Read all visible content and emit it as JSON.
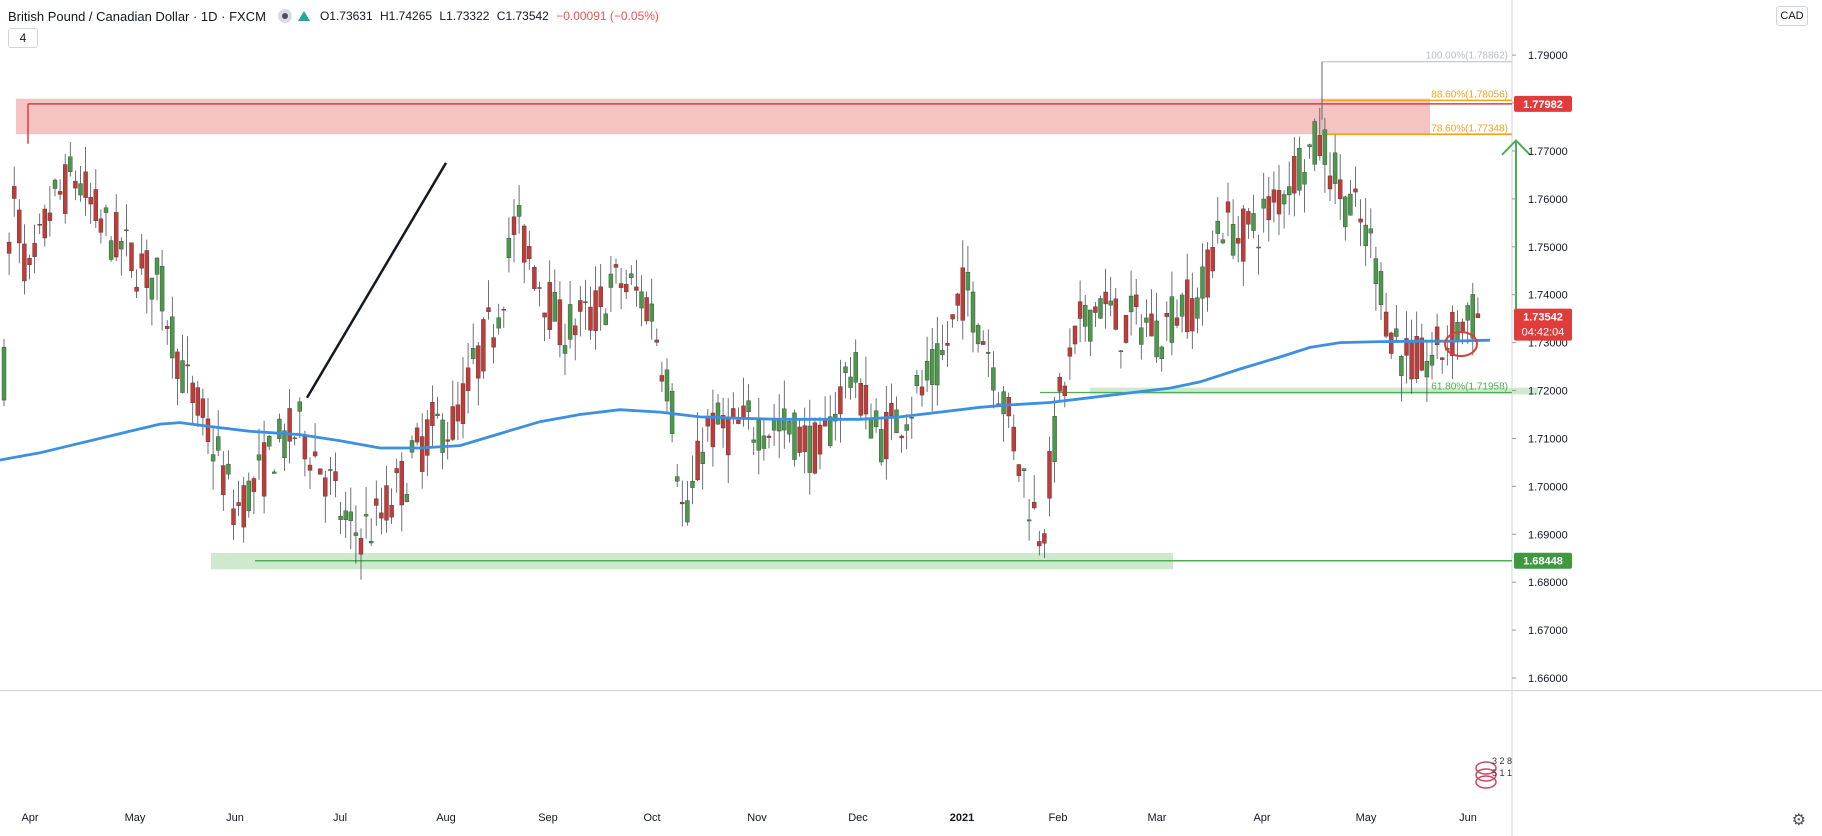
{
  "header": {
    "symbol": "British Pound / Canadian Dollar · 1D · FXCM",
    "open_label": "O1.73631",
    "high_label": "H1.74265",
    "low_label": "L1.73322",
    "close_label": "C1.73542",
    "change_label": "−0.00091 (−0.05%)",
    "indicator_count": "4",
    "currency": "CAD"
  },
  "chart_data": {
    "type": "candlestick",
    "title": "British Pound / Canadian Dollar · 1D · FXCM",
    "x_ticks": [
      "Apr",
      "May",
      "Jun",
      "Jul",
      "Aug",
      "Sep",
      "Oct",
      "Nov",
      "Dec",
      "2021",
      "Feb",
      "Mar",
      "Apr",
      "May",
      "Jun"
    ],
    "y_ticks": [
      "1.79000",
      "1.78000",
      "1.77000",
      "1.76000",
      "1.75000",
      "1.74000",
      "1.73000",
      "1.72000",
      "1.71000",
      "1.70000",
      "1.69000",
      "1.68000",
      "1.67000",
      "1.66000"
    ],
    "ylim": [
      1.6575,
      1.8015
    ],
    "price_labels": {
      "resistance": "1.77982",
      "current": "1.73542",
      "countdown": "04:42:04",
      "support": "1.68448"
    },
    "fib_levels": [
      {
        "label": "100.00%(1.78862)",
        "value": 1.78862
      },
      {
        "label": "88.60%(1.78056)",
        "value": 1.78056
      },
      {
        "label": "78.60%(1.77348)",
        "value": 1.77348
      },
      {
        "label": "61.80%(1.71958)",
        "value": 1.71958
      }
    ],
    "resistance_zone": [
      1.7735,
      1.7809
    ],
    "support_zone_upper": [
      1.7192,
      1.7206
    ],
    "support_zone_lower": [
      1.6827,
      1.6861
    ],
    "trendline": {
      "from": [
        "Aug",
        1.7675
      ],
      "to": [
        "Jun",
        1.7185
      ]
    },
    "moving_average_color": "#3d8fe0",
    "colors": {
      "up": "#4a9a4a",
      "down": "#c23b36",
      "resistance": "#e03c3c",
      "support": "#4caf50",
      "fib": "#f7a21b",
      "arrow": "#4caf50"
    },
    "signature": [
      "3  2  8",
      "5 1 1"
    ]
  }
}
